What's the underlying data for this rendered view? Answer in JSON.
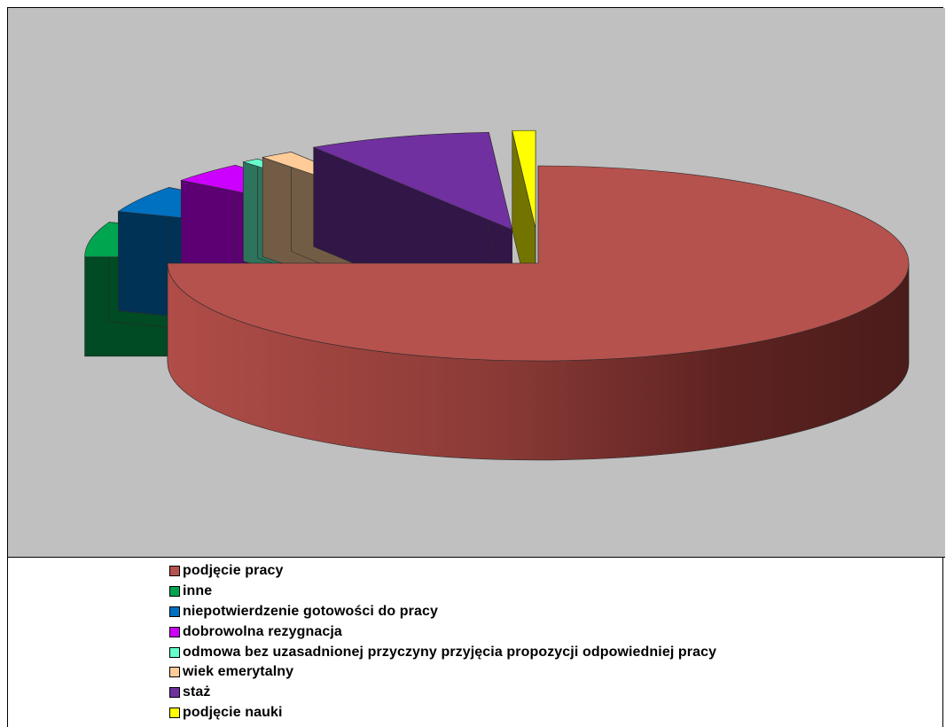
{
  "chart_data": {
    "type": "pie",
    "style": "3d-exploded",
    "legend_position": "bottom",
    "series": [
      {
        "name": "podjęcie pracy",
        "value": 75.0,
        "color": "#b5524d"
      },
      {
        "name": "inne",
        "value": 5.8,
        "color": "#00a550"
      },
      {
        "name": "niepotwierdzenie gotowości do pracy",
        "value": 4.5,
        "color": "#0070c0"
      },
      {
        "name": "dobrowolna rezygnacja",
        "value": 3.4,
        "color": "#cc00ff"
      },
      {
        "name": "odmowa bez uzasadnionej przyczyny przyjęcia propozycji odpowiedniej pracy",
        "value": 0.8,
        "color": "#66ffcc"
      },
      {
        "name": "wiek emerytalny",
        "value": 1.5,
        "color": "#ffcc99"
      },
      {
        "name": "staż",
        "value": 8.0,
        "color": "#7030a0"
      },
      {
        "name": "podjęcie nauki",
        "value": 1.0,
        "color": "#ffff00"
      }
    ]
  }
}
